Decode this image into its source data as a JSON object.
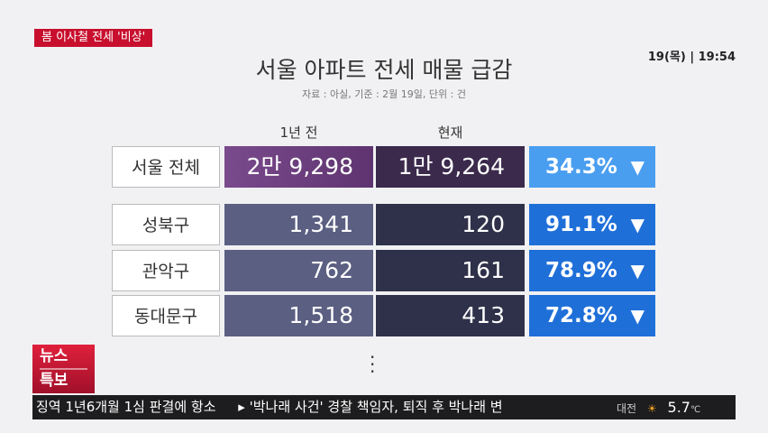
{
  "topic_tag": "봄 이사철 전세 '비상'",
  "clock": {
    "date": "19(목)",
    "time": "19:54"
  },
  "title": "서울 아파트 전세 매물 급감",
  "subtitle": "자료 : 아실, 기준 : 2월 19일, 단위 : 건",
  "table": {
    "columns": [
      "1년 전",
      "현재"
    ],
    "rows": [
      [
        "서울 전체",
        "2만 9,298",
        "1만 9,264",
        "34.3%"
      ],
      [
        "성북구",
        "1,341",
        "120",
        "91.1%"
      ],
      [
        "관악구",
        "762",
        "161",
        "78.9%"
      ],
      [
        "동대문구",
        "1,518",
        "413",
        "72.8%"
      ]
    ]
  },
  "logo": {
    "line1": "뉴스",
    "line2": "특보"
  },
  "ticker": [
    "징역 1년6개월 1심 판결에 항소",
    "'박나래 사건' 경찰 책임자, 퇴직 후 박나래 변"
  ],
  "weather": {
    "city": "대전",
    "temp": "5.7",
    "unit": "℃"
  }
}
